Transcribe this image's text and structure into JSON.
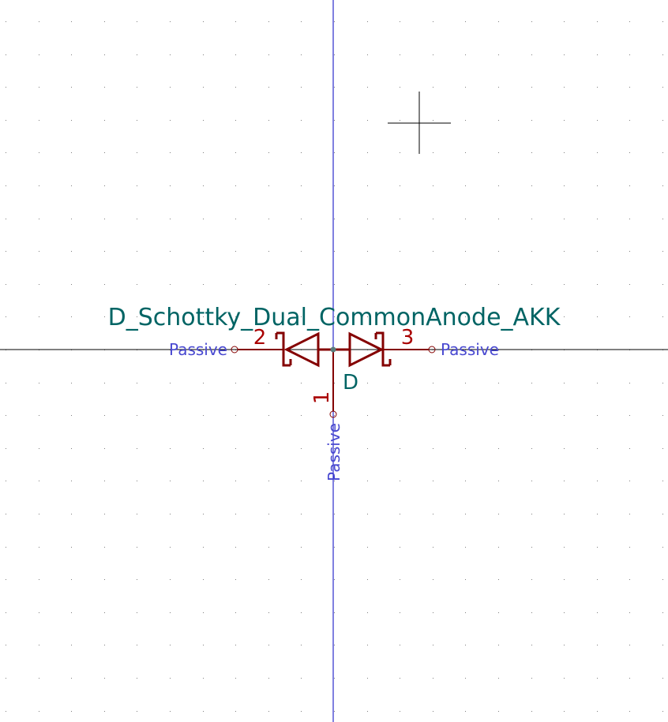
{
  "symbol": {
    "value": "D_Schottky_Dual_CommonAnode_AKK",
    "reference": "D",
    "pins": [
      {
        "number": "1",
        "electrical_type": "Passive"
      },
      {
        "number": "2",
        "electrical_type": "Passive"
      },
      {
        "number": "3",
        "electrical_type": "Passive"
      }
    ]
  },
  "colors": {
    "background": "#ffffff",
    "grid": "#7f7f7f",
    "axis": "#0000c2",
    "body": "#840000",
    "pin_number": "#a90000",
    "pin_type": "#4848d0",
    "field": "#006464",
    "cursor": "#000000"
  }
}
